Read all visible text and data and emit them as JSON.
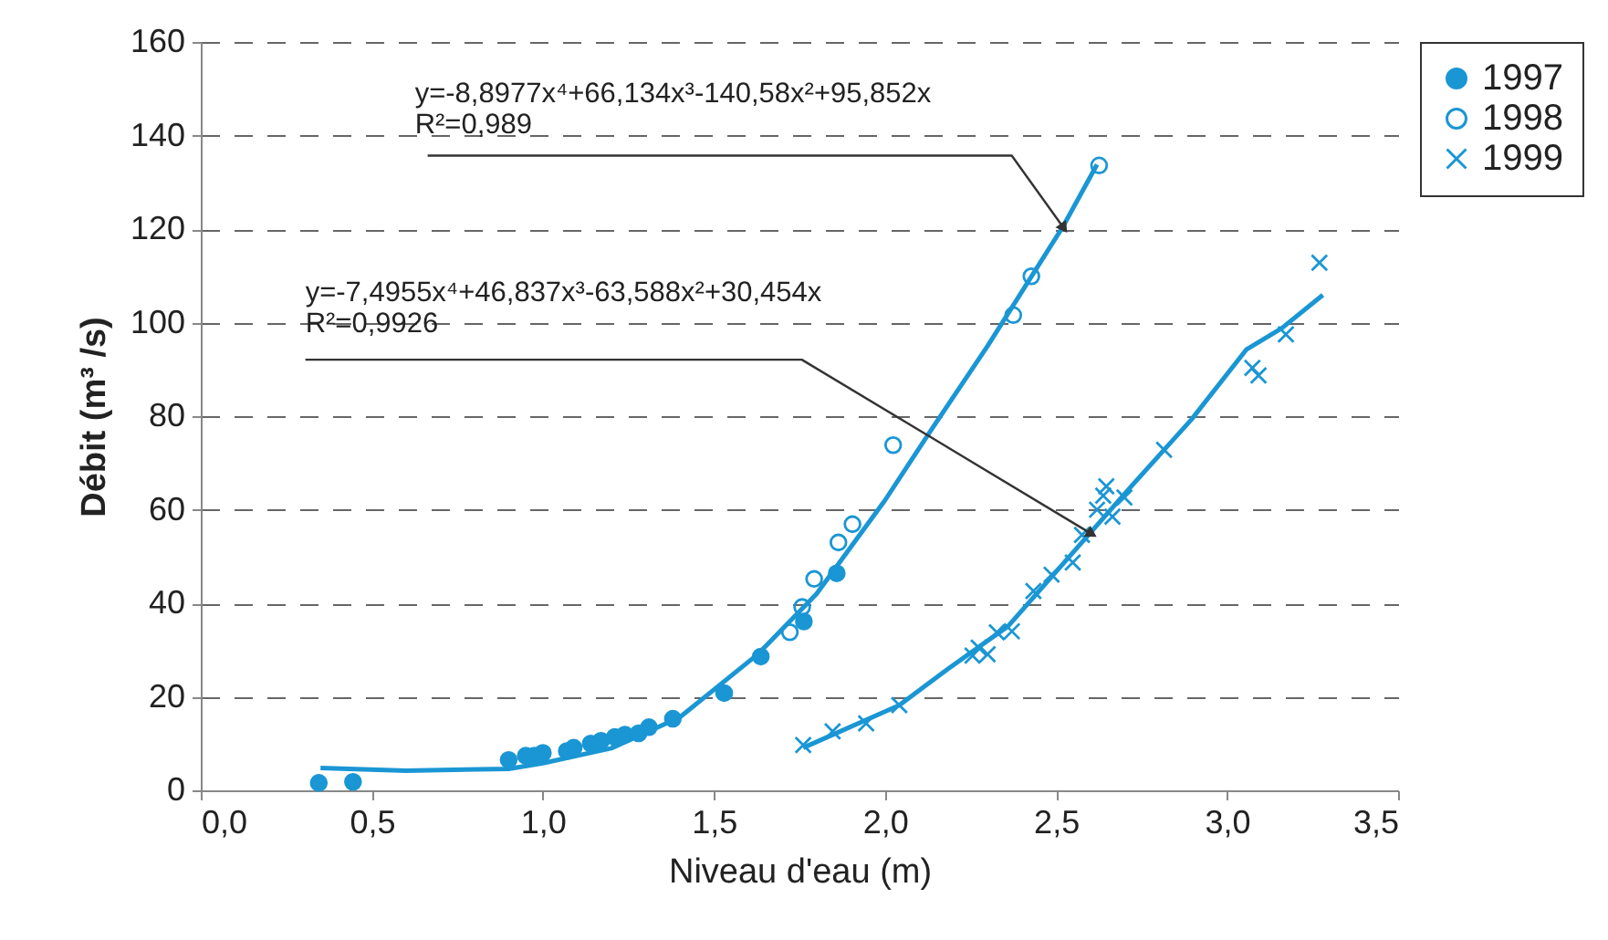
{
  "chart_data": {
    "type": "scatter",
    "xlabel": "Niveau d'eau (m)",
    "ylabel": "Débit (m³ /s)",
    "xlim": [
      0,
      3.5
    ],
    "xticks": [
      {
        "value": 0,
        "label": "0,0"
      },
      {
        "value": 0.5,
        "label": "0,5"
      },
      {
        "value": 1,
        "label": "1,0"
      },
      {
        "value": 1.5,
        "label": "1,5"
      },
      {
        "value": 2,
        "label": "2,0"
      },
      {
        "value": 2.5,
        "label": "2,5"
      },
      {
        "value": 3,
        "label": "3,0"
      },
      {
        "value": 3.5,
        "label": "3,5"
      }
    ],
    "ylim": [
      0,
      160
    ],
    "yticks": [
      0,
      20,
      40,
      60,
      80,
      100,
      120,
      140,
      160
    ],
    "grid": "y",
    "legend": "top right",
    "annotations": [
      {
        "text": "y=-8,8977x⁴+66,134x³-140,58x²+95,852x\nR²=0,989",
        "x": 2.52,
        "y": 120.5
      },
      {
        "text": "y=-7,4955x⁴+46,837x³-63,588x²+30,454x\nR²=0,9926",
        "x": 2.6,
        "y": 55
      }
    ],
    "series": [
      {
        "name": "1997",
        "color": "#1a96d4",
        "marker": "circle",
        "x": [
          0.345,
          0.445,
          0.9,
          0.95,
          0.975,
          1.0,
          1.07,
          1.09,
          1.14,
          1.17,
          1.21,
          1.24,
          1.28,
          1.31,
          1.38,
          1.53,
          1.637,
          1.763,
          1.859
        ],
        "values": [
          1.6,
          1.8,
          6.5,
          7.4,
          7.4,
          8.0,
          8.4,
          9.1,
          10.0,
          10.6,
          11.4,
          11.9,
          12.2,
          13.5,
          15.3,
          20.8,
          28.6,
          36.1,
          46.4
        ]
      },
      {
        "name": "1998",
        "color": "#1a96d4",
        "marker": "circle",
        "x": [
          1.722,
          1.758,
          1.793,
          1.864,
          1.905,
          2.024,
          2.375,
          2.428,
          2.626
        ],
        "values": [
          33.8,
          39.2,
          45.2,
          53.0,
          56.9,
          73.8,
          101.6,
          109.9,
          133.6
        ]
      },
      {
        "name": "1999",
        "color": "#1a96d4",
        "marker": "cross",
        "x": [
          1.761,
          1.847,
          1.945,
          2.042,
          2.256,
          2.274,
          2.3,
          2.327,
          2.371,
          2.434,
          2.487,
          2.549,
          2.576,
          2.62,
          2.638,
          2.647,
          2.665,
          2.7,
          2.816,
          3.074,
          3.092,
          3.172,
          3.27
        ],
        "values": [
          9.7,
          12.6,
          14.3,
          18.2,
          28.8,
          30.5,
          29.1,
          33.8,
          34.0,
          42.6,
          46.1,
          48.7,
          54.6,
          60.0,
          63.0,
          65.0,
          58.5,
          62.6,
          72.8,
          90.3,
          88.7,
          97.5,
          112.8
        ]
      },
      {
        "type": "line",
        "color": "#1a96d4",
        "x": [
          0.35,
          0.6,
          0.9,
          1.0,
          1.2,
          1.4,
          1.63,
          1.8,
          2.0,
          2.14,
          2.3,
          2.52,
          2.62
        ],
        "values": [
          4.8,
          4.2,
          4.6,
          5.8,
          9,
          15.6,
          29.2,
          42,
          62,
          77.6,
          95,
          120.5,
          133.8
        ]
      },
      {
        "type": "line",
        "color": "#1a96d4",
        "x": [
          1.761,
          2.042,
          2.185,
          2.36,
          2.72,
          2.896,
          3.056,
          3.16,
          3.28
        ],
        "values": [
          9.1,
          18.2,
          26,
          35.1,
          65,
          79.3,
          94.2,
          98.8,
          105.9
        ]
      }
    ]
  }
}
